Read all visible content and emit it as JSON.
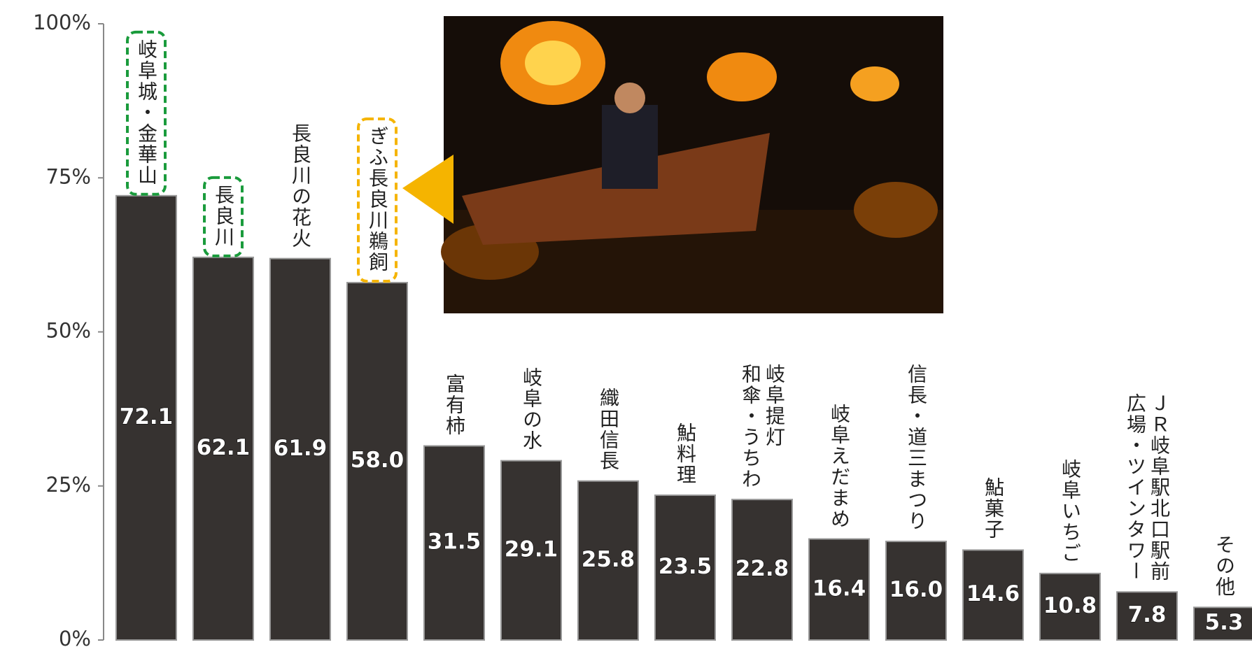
{
  "chart_data": {
    "type": "bar",
    "categories": [
      "岐阜城・金華山",
      "長良川",
      "長良川の花火",
      "ぎふ長良川鵜飼",
      "富有柿",
      "岐阜の水",
      "織田信長",
      "鮎料理",
      "岐阜提灯\n和傘・うちわ",
      "岐阜えだまめ",
      "信長・道三まつり",
      "鮎菓子",
      "岐阜いちご",
      "ＪＲ岐阜駅北口駅前\n広場・ツインタワー",
      "その他"
    ],
    "values": [
      72.1,
      62.1,
      61.9,
      58.0,
      31.5,
      29.1,
      25.8,
      23.5,
      22.8,
      16.4,
      16.0,
      14.6,
      10.8,
      7.8,
      5.3
    ],
    "value_labels": [
      "72.1",
      "62.1",
      "61.9",
      "58.0",
      "31.5",
      "29.1",
      "25.8",
      "23.5",
      "22.8",
      "16.4",
      "16.0",
      "14.6",
      "10.8",
      "7.8",
      "5.3"
    ],
    "color": "#363230",
    "highlight_colors": [
      "#1a9b3c",
      "#1a9b3c",
      null,
      "#f5b400",
      null,
      null,
      null,
      null,
      null,
      null,
      null,
      null,
      null,
      null,
      null
    ],
    "ylim": [
      0,
      100
    ],
    "yticks": [
      {
        "value": 0,
        "label": "0%"
      },
      {
        "value": 25,
        "label": "25%"
      },
      {
        "value": 50,
        "label": "50%"
      },
      {
        "value": 75,
        "label": "75%"
      },
      {
        "value": 100,
        "label": "100%"
      }
    ]
  }
}
